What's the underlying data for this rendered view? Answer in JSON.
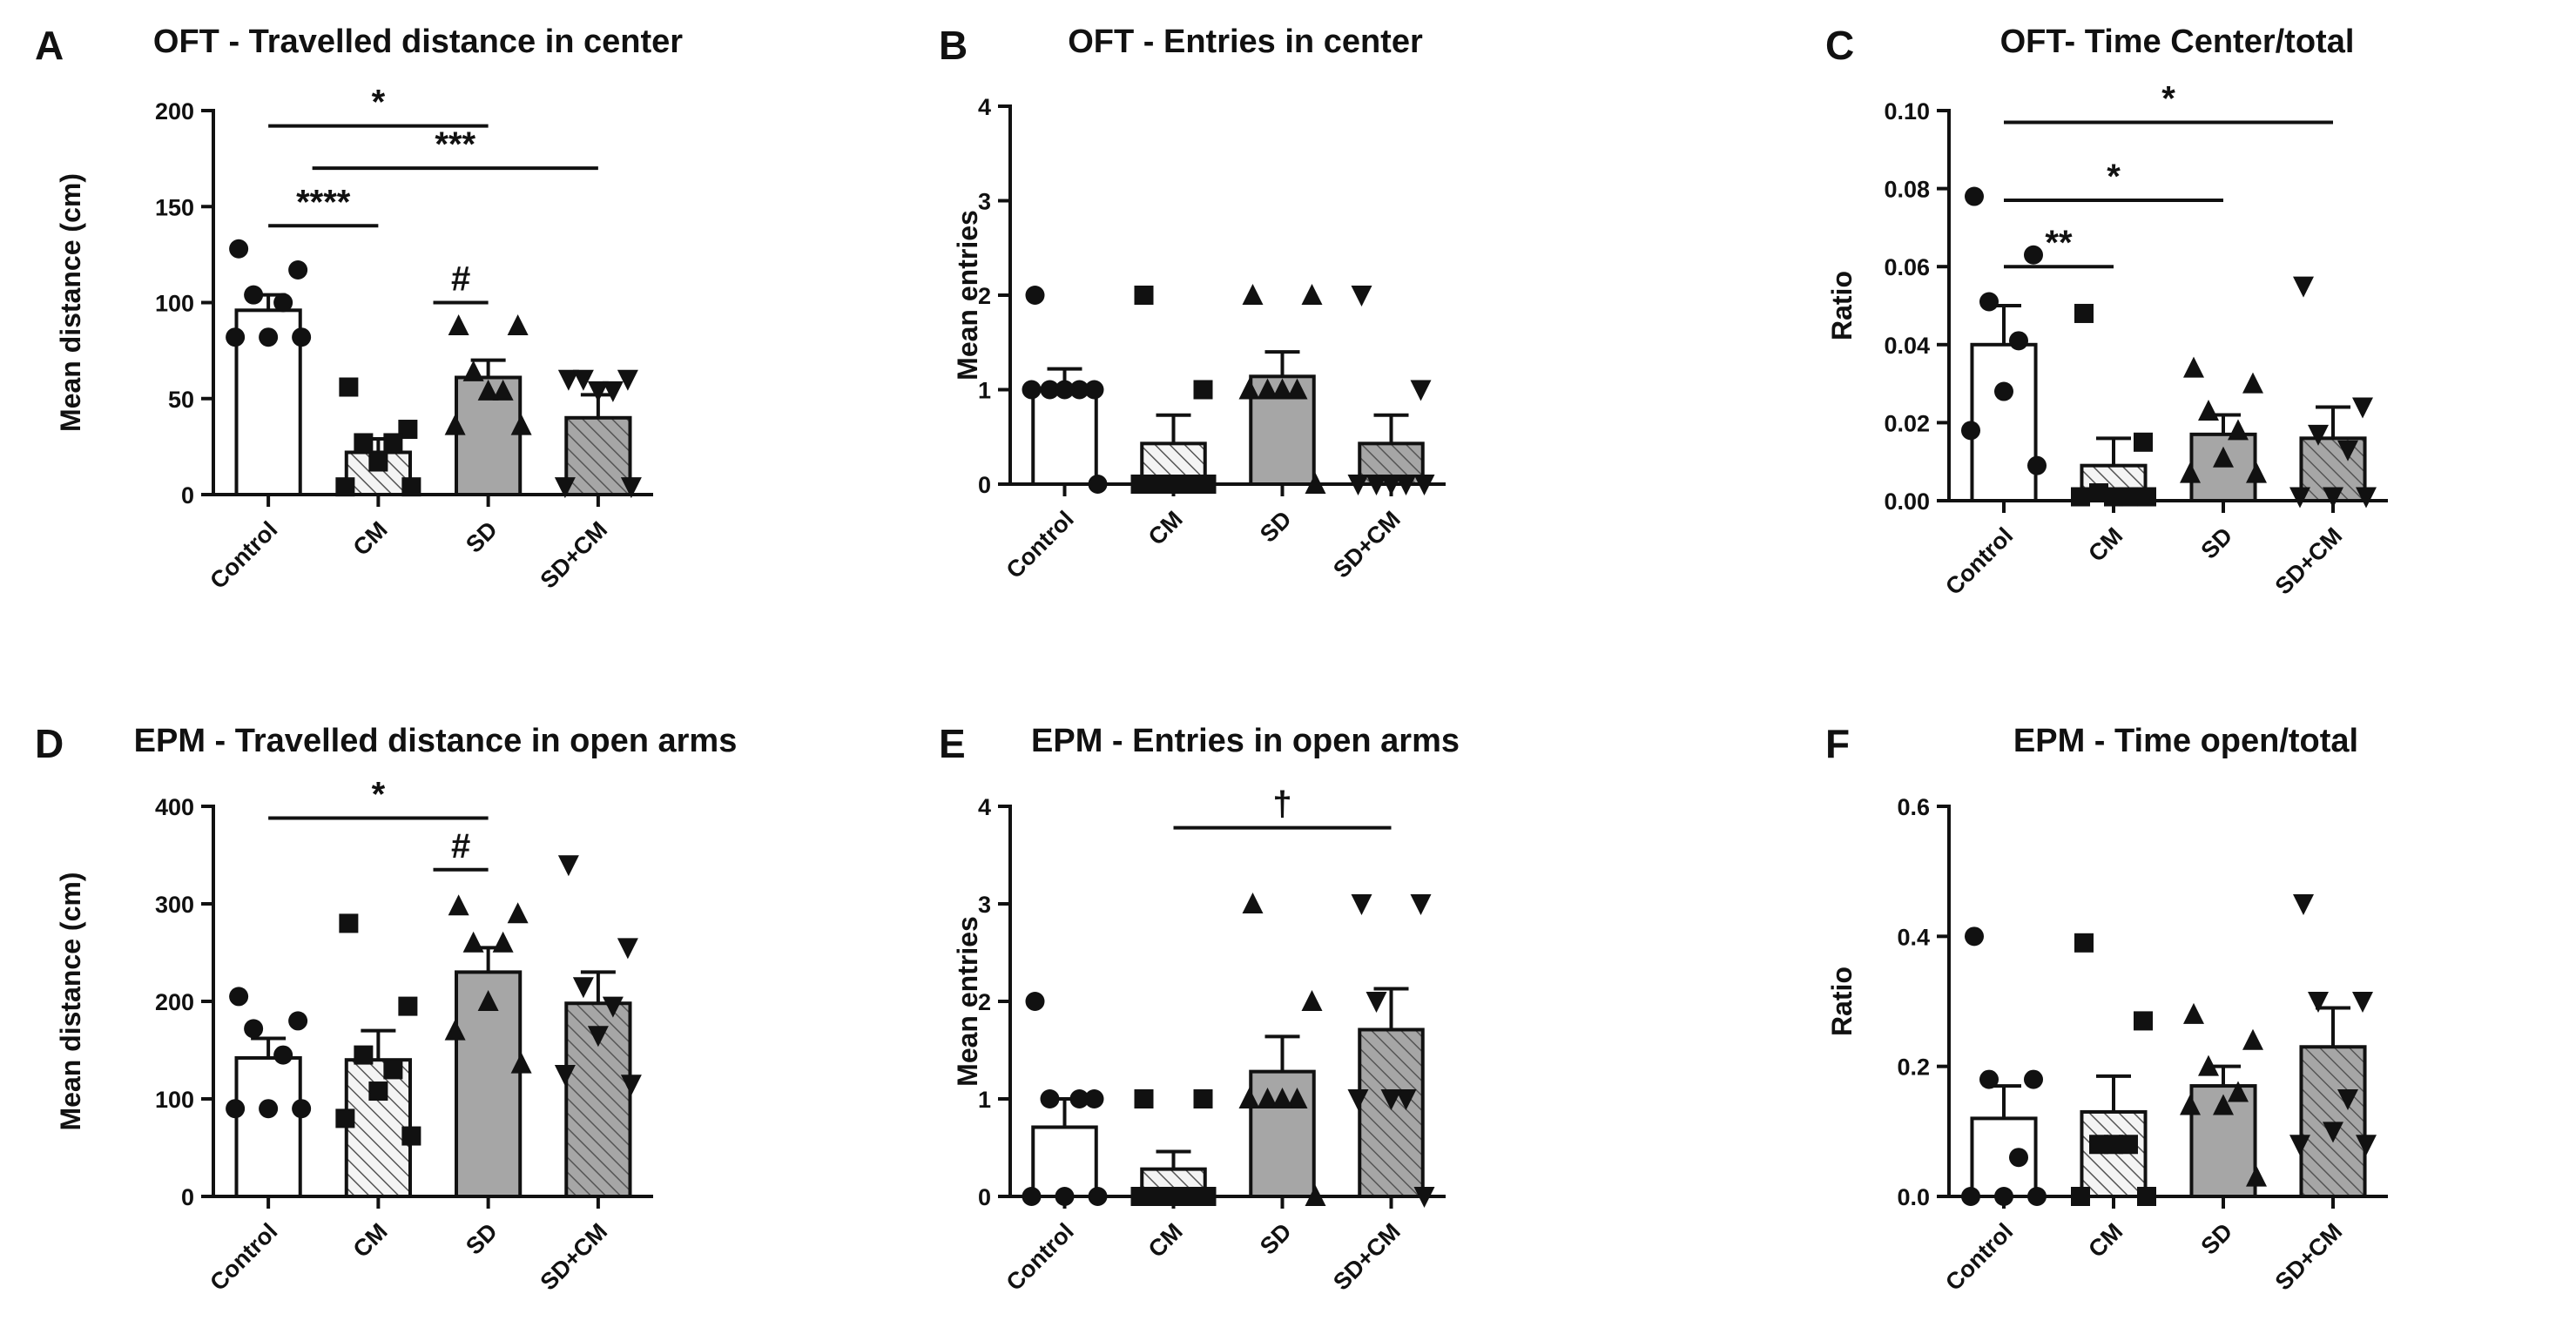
{
  "colors": {
    "Control": "#ffffff",
    "CM": "#f2f2f2",
    "SD": "#a6a6a6",
    "SD+CM": "#a6a6a6",
    "ink": "#111111"
  },
  "chart_data": [
    {
      "label": "A",
      "type": "bar",
      "title": "OFT - Travelled distance in center",
      "ylabel": "Mean distance (cm)",
      "categories": [
        "Control",
        "CM",
        "SD",
        "SD+CM"
      ],
      "ylim": [
        0,
        200
      ],
      "yticks": [
        0,
        50,
        100,
        150,
        200
      ],
      "ytick_labels": [
        "0",
        "50",
        "100",
        "150",
        "200"
      ],
      "means": [
        96,
        22,
        61,
        40
      ],
      "sem": [
        8,
        7,
        9,
        12
      ],
      "points": [
        [
          128,
          117,
          104,
          100,
          82,
          82,
          82
        ],
        [
          56,
          34,
          27,
          27,
          17,
          4,
          4
        ],
        [
          88,
          88,
          64,
          54,
          54,
          36,
          36
        ],
        [
          60,
          60,
          60,
          54,
          54,
          4,
          4
        ]
      ],
      "markers": [
        "circle",
        "square",
        "triangle-up",
        "triangle-down"
      ],
      "significance": [
        {
          "x1": 0,
          "x2": 2,
          "y": 192,
          "label": "*"
        },
        {
          "x1": 0.4,
          "x2": 3,
          "y": 170,
          "label": "***"
        },
        {
          "x1": 0,
          "x2": 1,
          "y": 140,
          "label": "****"
        },
        {
          "x1": 1.5,
          "x2": 2,
          "y": 100,
          "label": "#"
        }
      ]
    },
    {
      "label": "B",
      "type": "bar",
      "title": "OFT - Entries in center",
      "ylabel": "Mean entries",
      "categories": [
        "Control",
        "CM",
        "SD",
        "SD+CM"
      ],
      "ylim": [
        0,
        4
      ],
      "yticks": [
        0,
        1,
        2,
        3,
        4
      ],
      "ytick_labels": [
        "0",
        "1",
        "2",
        "3",
        "4"
      ],
      "means": [
        1.0,
        0.43,
        1.14,
        0.43
      ],
      "sem": [
        0.22,
        0.3,
        0.26,
        0.3
      ],
      "points": [
        [
          2,
          1,
          1,
          1,
          1,
          1,
          0
        ],
        [
          2,
          1,
          0,
          0,
          0,
          0,
          0
        ],
        [
          2,
          2,
          1,
          1,
          1,
          1,
          0
        ],
        [
          2,
          1,
          0,
          0,
          0,
          0,
          0
        ]
      ],
      "markers": [
        "circle",
        "square",
        "triangle-up",
        "triangle-down"
      ],
      "significance": []
    },
    {
      "label": "C",
      "type": "bar",
      "title": "OFT- Time Center/total",
      "ylabel": "Ratio",
      "categories": [
        "Control",
        "CM",
        "SD",
        "SD+CM"
      ],
      "ylim": [
        0,
        0.1
      ],
      "yticks": [
        0,
        0.02,
        0.04,
        0.06,
        0.08,
        0.1
      ],
      "ytick_labels": [
        "0.00",
        "0.02",
        "0.04",
        "0.06",
        "0.08",
        "0.10"
      ],
      "means": [
        0.04,
        0.009,
        0.017,
        0.016
      ],
      "sem": [
        0.01,
        0.007,
        0.005,
        0.008
      ],
      "points": [
        [
          0.078,
          0.063,
          0.051,
          0.041,
          0.028,
          0.018,
          0.009
        ],
        [
          0.048,
          0.015,
          0.002,
          0.001,
          0.001,
          0.001,
          0.001
        ],
        [
          0.034,
          0.03,
          0.023,
          0.018,
          0.011,
          0.007,
          0.007
        ],
        [
          0.055,
          0.024,
          0.017,
          0.013,
          0.001,
          0.001,
          0.001
        ]
      ],
      "markers": [
        "circle",
        "square",
        "triangle-up",
        "triangle-down"
      ],
      "significance": [
        {
          "x1": 0,
          "x2": 3,
          "y": 0.097,
          "label": "*"
        },
        {
          "x1": 0,
          "x2": 2,
          "y": 0.077,
          "label": "*"
        },
        {
          "x1": 0,
          "x2": 1,
          "y": 0.06,
          "label": "**"
        }
      ]
    },
    {
      "label": "D",
      "type": "bar",
      "title": "EPM - Travelled distance in open arms",
      "ylabel": "Mean distance (cm)",
      "categories": [
        "Control",
        "CM",
        "SD",
        "SD+CM"
      ],
      "ylim": [
        0,
        400
      ],
      "yticks": [
        0,
        100,
        200,
        300,
        400
      ],
      "ytick_labels": [
        "0",
        "100",
        "200",
        "300",
        "400"
      ],
      "means": [
        142,
        140,
        230,
        198
      ],
      "sem": [
        20,
        30,
        25,
        32
      ],
      "points": [
        [
          205,
          180,
          172,
          145,
          90,
          90,
          90
        ],
        [
          280,
          195,
          145,
          130,
          108,
          80,
          62
        ],
        [
          298,
          290,
          260,
          260,
          200,
          170,
          136
        ],
        [
          340,
          255,
          215,
          195,
          165,
          125,
          115
        ]
      ],
      "markers": [
        "circle",
        "square",
        "triangle-up",
        "triangle-down"
      ],
      "significance": [
        {
          "x1": 0,
          "x2": 2,
          "y": 388,
          "label": "*"
        },
        {
          "x1": 1.5,
          "x2": 2,
          "y": 335,
          "label": "#"
        }
      ]
    },
    {
      "label": "E",
      "type": "bar",
      "title": "EPM - Entries in open arms",
      "ylabel": "Mean entries",
      "categories": [
        "Control",
        "CM",
        "SD",
        "SD+CM"
      ],
      "ylim": [
        0,
        4
      ],
      "yticks": [
        0,
        1,
        2,
        3,
        4
      ],
      "ytick_labels": [
        "0",
        "1",
        "2",
        "3",
        "4"
      ],
      "means": [
        0.71,
        0.28,
        1.28,
        1.71
      ],
      "sem": [
        0.29,
        0.18,
        0.36,
        0.42
      ],
      "points": [
        [
          2,
          1,
          1,
          1,
          0,
          0,
          0
        ],
        [
          1,
          1,
          0,
          0,
          0,
          0,
          0
        ],
        [
          3,
          2,
          1,
          1,
          1,
          1,
          0
        ],
        [
          3,
          3,
          2,
          1,
          1,
          1,
          0
        ]
      ],
      "markers": [
        "circle",
        "square",
        "triangle-up",
        "triangle-down"
      ],
      "significance": [
        {
          "x1": 1,
          "x2": 3,
          "y": 3.78,
          "label": "†"
        }
      ]
    },
    {
      "label": "F",
      "type": "bar",
      "title": "EPM - Time open/total",
      "ylabel": "Ratio",
      "categories": [
        "Control",
        "CM",
        "SD",
        "SD+CM"
      ],
      "ylim": [
        0,
        0.6
      ],
      "yticks": [
        0,
        0.2,
        0.4,
        0.6
      ],
      "ytick_labels": [
        "0.0",
        "0.2",
        "0.4",
        "0.6"
      ],
      "means": [
        0.12,
        0.13,
        0.17,
        0.23
      ],
      "sem": [
        0.05,
        0.055,
        0.03,
        0.06
      ],
      "points": [
        [
          0.4,
          0.18,
          0.18,
          0.06,
          0.0,
          0.0,
          0.0
        ],
        [
          0.39,
          0.27,
          0.08,
          0.08,
          0.08,
          0.0,
          0.0
        ],
        [
          0.28,
          0.24,
          0.2,
          0.16,
          0.14,
          0.14,
          0.03
        ],
        [
          0.45,
          0.3,
          0.3,
          0.15,
          0.1,
          0.08,
          0.08
        ]
      ],
      "markers": [
        "circle",
        "square",
        "triangle-up",
        "triangle-down"
      ],
      "significance": []
    }
  ]
}
